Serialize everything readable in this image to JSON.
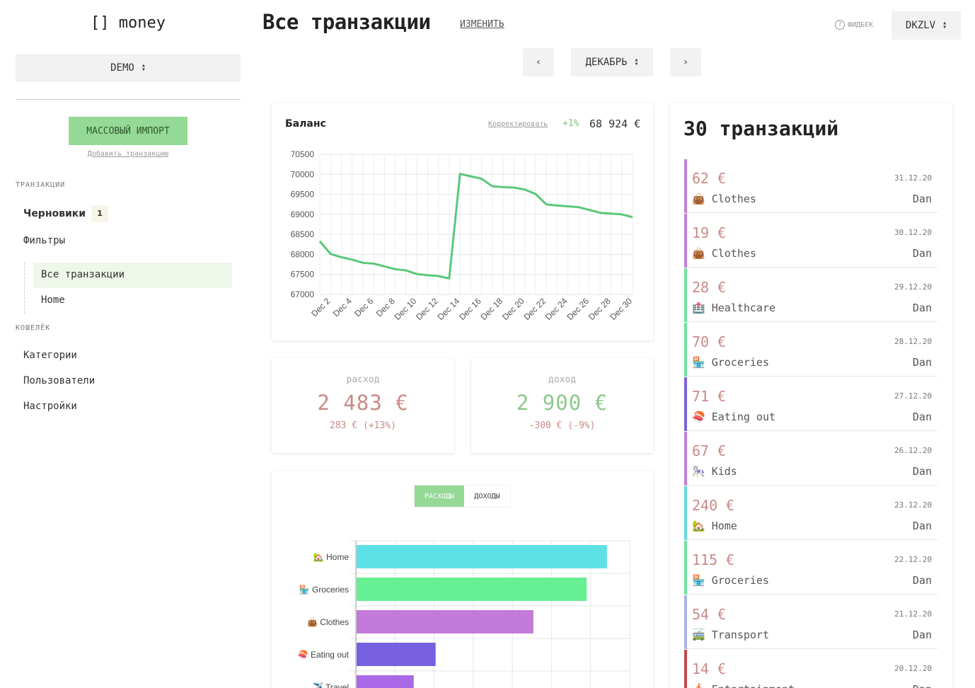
{
  "brand": {
    "logo": "[] money"
  },
  "sidebar": {
    "workspace": "DEMO",
    "import_label": "МАССОВЫЙ ИМПОРТ",
    "add_tx_label": "Добавить транзакцию",
    "transactions_section": "ТРАНЗАКЦИИ",
    "drafts": "Черновики",
    "drafts_count": "1",
    "filters": "Фильтры",
    "filter_items": [
      "Все транзакции",
      "Home"
    ],
    "wallet_section": "КОШЕЛЁК",
    "wallet_items": [
      "Категории",
      "Пользователи",
      "Настройки"
    ]
  },
  "header": {
    "title": "Все транзакции",
    "edit_label": "ИЗМЕНИТЬ",
    "feedback_label": "ФИДБЕК",
    "account": "DKZLV",
    "month": "ДЕКАБРЬ",
    "prev": "‹",
    "next": "›"
  },
  "balance": {
    "label": "Баланс",
    "adjust_label": "Корректировать",
    "change": "+1%",
    "value": "68 924 €"
  },
  "expense": {
    "label": "расход",
    "value": "2 483 €",
    "delta": "283 € (+13%)",
    "color": "#c98a88"
  },
  "income": {
    "label": "доход",
    "value": "2 900 €",
    "delta": "-300 € (-9%)",
    "color": "#8cc98d"
  },
  "category_toggle": {
    "expenses": "РАСХОДЫ",
    "incomes": "ДОХОДЫ"
  },
  "chart_data": [
    {
      "type": "line",
      "x": [
        "Dec 1",
        "Dec 2",
        "Dec 3",
        "Dec 4",
        "Dec 5",
        "Dec 6",
        "Dec 7",
        "Dec 8",
        "Dec 9",
        "Dec 10",
        "Dec 11",
        "Dec 12",
        "Dec 13",
        "Dec 14",
        "Dec 15",
        "Dec 16",
        "Dec 17",
        "Dec 18",
        "Dec 19",
        "Dec 20",
        "Dec 21",
        "Dec 22",
        "Dec 23",
        "Dec 24",
        "Dec 25",
        "Dec 26",
        "Dec 27",
        "Dec 28",
        "Dec 29",
        "Dec 30"
      ],
      "tick_labels": [
        "Dec 2",
        "Dec 4",
        "Dec 6",
        "Dec 8",
        "Dec 10",
        "Dec 12",
        "Dec 14",
        "Dec 16",
        "Dec 18",
        "Dec 20",
        "Dec 22",
        "Dec 24",
        "Dec 26",
        "Dec 28",
        "Dec 30"
      ],
      "series": [
        {
          "values": [
            68330,
            68010,
            67930,
            67870,
            67790,
            67770,
            67700,
            67630,
            67600,
            67510,
            67480,
            67460,
            67400,
            70010,
            69950,
            69890,
            69700,
            69680,
            69670,
            69620,
            69510,
            69250,
            69220,
            69200,
            69180,
            69110,
            69040,
            69020,
            69000,
            68930
          ],
          "color": "#5ac87b"
        }
      ],
      "ylim": [
        67000,
        70500
      ],
      "yticks": [
        67000,
        67500,
        68000,
        68500,
        69000,
        69500,
        70000,
        70500
      ],
      "grid": true
    },
    {
      "type": "bar",
      "orientation": "horizontal",
      "categories": [
        "🏡 Home",
        "🏪 Groceries",
        "👜 Clothes",
        "🍣 Eating out",
        "✈️ Travel"
      ],
      "values": [
        640,
        588,
        452,
        202,
        146
      ],
      "colors": [
        "#5ee1e6",
        "#66ef93",
        "#c37ad9",
        "#7760e0",
        "#a969e6"
      ]
    }
  ],
  "tx_count_label": "30 транзакций",
  "transactions": [
    {
      "amount": "62 €",
      "date": "31.12.20",
      "category": "👜 Clothes",
      "user": "Dan",
      "color": "#c57fd6"
    },
    {
      "amount": "19 €",
      "date": "30.12.20",
      "category": "👜 Clothes",
      "user": "Dan",
      "color": "#c57fd6"
    },
    {
      "amount": "28 €",
      "date": "29.12.20",
      "category": "🏥 Healthcare",
      "user": "Dan",
      "color": "#6fe39b"
    },
    {
      "amount": "70 €",
      "date": "28.12.20",
      "category": "🏪 Groceries",
      "user": "Dan",
      "color": "#6fe39b"
    },
    {
      "amount": "71 €",
      "date": "27.12.20",
      "category": "🍣 Eating out",
      "user": "Dan",
      "color": "#7a62d8"
    },
    {
      "amount": "67 €",
      "date": "26.12.20",
      "category": "🎠 Kids",
      "user": "Dan",
      "color": "#c57fd6"
    },
    {
      "amount": "240 €",
      "date": "23.12.20",
      "category": "🏡 Home",
      "user": "Dan",
      "color": "#63d9e0"
    },
    {
      "amount": "115 €",
      "date": "22.12.20",
      "category": "🏪 Groceries",
      "user": "Dan",
      "color": "#6fe39b"
    },
    {
      "amount": "54 €",
      "date": "21.12.20",
      "category": "🚎 Transport",
      "user": "Dan",
      "color": "#a9b6e4"
    },
    {
      "amount": "14 €",
      "date": "20.12.20",
      "category": "🎪 Entertainment",
      "user": "Dan",
      "color": "#c24a4a"
    }
  ]
}
